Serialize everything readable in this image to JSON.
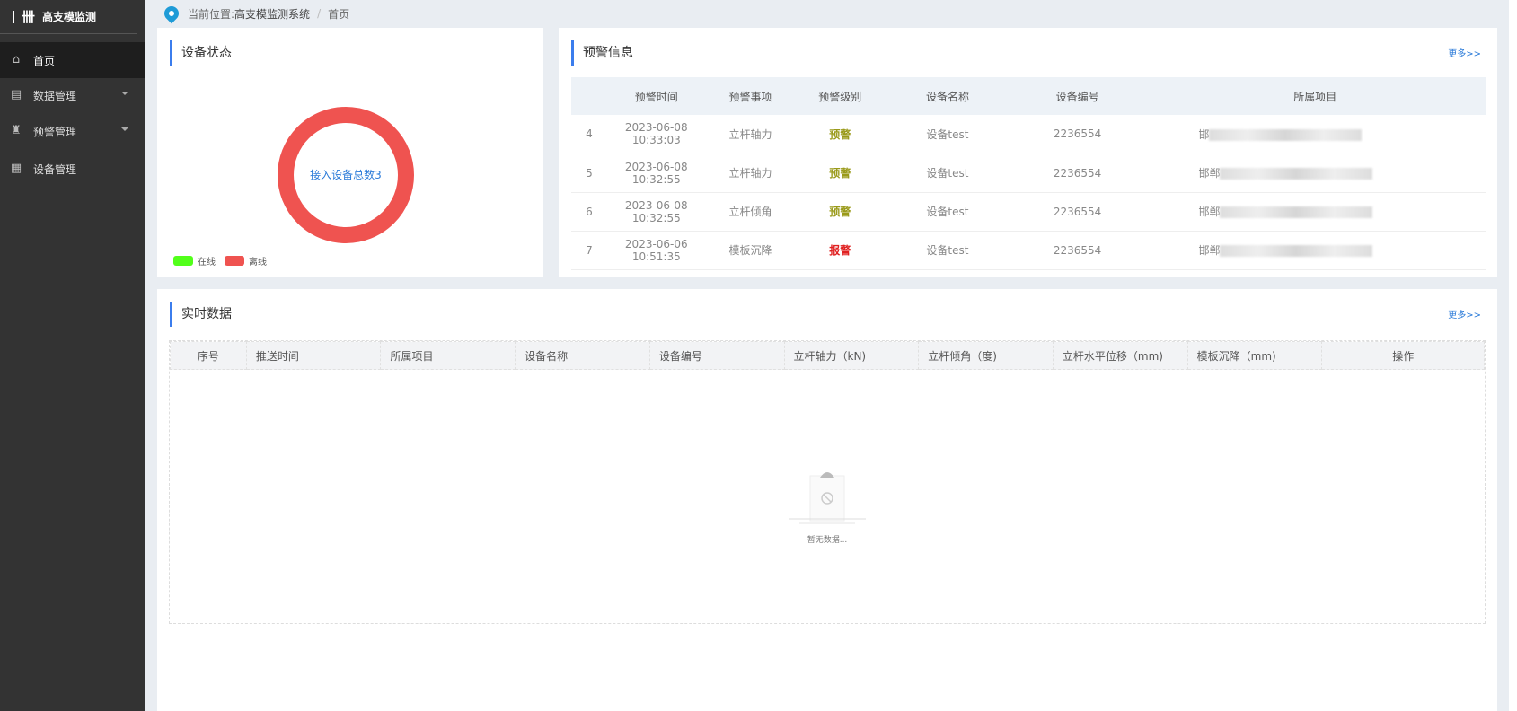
{
  "app": {
    "title": "高支模监测"
  },
  "sidebar": {
    "items": [
      {
        "label": "首页",
        "icon": "home-icon",
        "active": true
      },
      {
        "label": "数据管理",
        "icon": "data-icon",
        "has_submenu": true
      },
      {
        "label": "预警管理",
        "icon": "alarm-icon",
        "has_submenu": true
      },
      {
        "label": "设备管理",
        "icon": "device-icon"
      }
    ]
  },
  "breadcrumb": {
    "prefix": "当前位置:",
    "system": "高支模监测系统",
    "separator": "/",
    "current": "首页"
  },
  "device_status": {
    "title": "设备状态",
    "center_label": "接入设备总数3",
    "legend": [
      {
        "label": "在线",
        "color": "#52ff1a",
        "value": 0
      },
      {
        "label": "离线",
        "color": "#ef5350",
        "value": 3
      }
    ]
  },
  "warnings": {
    "title": "预警信息",
    "more": "更多>>",
    "columns": [
      "",
      "预警时间",
      "预警事项",
      "预警级别",
      "设备名称",
      "设备编号",
      "所属项目"
    ],
    "rows": [
      {
        "no": "4",
        "time": "2023-06-08 10:33:03",
        "item": "立杆轴力",
        "level": "预警",
        "device": "设备test",
        "code": "2236554",
        "project": "邯"
      },
      {
        "no": "5",
        "time": "2023-06-08 10:32:55",
        "item": "立杆轴力",
        "level": "预警",
        "device": "设备test",
        "code": "2236554",
        "project": "邯郸"
      },
      {
        "no": "6",
        "time": "2023-06-08 10:32:55",
        "item": "立杆倾角",
        "level": "预警",
        "device": "设备test",
        "code": "2236554",
        "project": "邯郸"
      },
      {
        "no": "7",
        "time": "2023-06-06 10:51:35",
        "item": "模板沉降",
        "level": "报警",
        "device": "设备test",
        "code": "2236554",
        "project": "邯郸"
      }
    ],
    "level_colors": {
      "预警": "#9a9a1a",
      "报警": "#e02020"
    }
  },
  "realtime": {
    "title": "实时数据",
    "more": "更多>>",
    "columns": [
      "序号",
      "推送时间",
      "所属项目",
      "设备名称",
      "设备编号",
      "立杆轴力（kN)",
      "立杆倾角（度)",
      "立杆水平位移（mm)",
      "模板沉降（mm)",
      "操作"
    ],
    "empty": "暂无数据..."
  }
}
